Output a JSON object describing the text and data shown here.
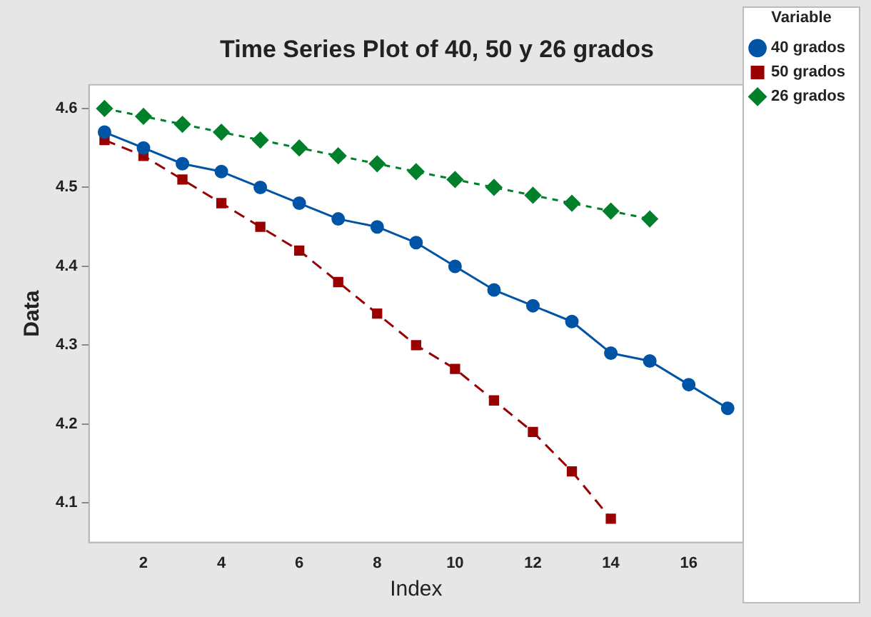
{
  "chart_data": {
    "type": "line",
    "title": "Time Series Plot of 40, 50 y 26 grados",
    "xlabel": "Index",
    "ylabel": "Data",
    "legend_title": "Variable",
    "legend": "right",
    "grid": false,
    "xlim": [
      0.6,
      17.4
    ],
    "xticks": [
      2,
      4,
      6,
      8,
      10,
      12,
      14,
      16
    ],
    "ylim": [
      4.05,
      4.63
    ],
    "yticks": [
      4.1,
      4.2,
      4.3,
      4.4,
      4.5,
      4.6
    ],
    "series": [
      {
        "name": "40 grados",
        "color": "#0054a6",
        "marker": "circle",
        "line_style": "solid",
        "x": [
          1,
          2,
          3,
          4,
          5,
          6,
          7,
          8,
          9,
          10,
          11,
          12,
          13,
          14,
          15,
          16,
          17
        ],
        "values": [
          4.57,
          4.55,
          4.53,
          4.52,
          4.5,
          4.48,
          4.46,
          4.45,
          4.43,
          4.4,
          4.37,
          4.35,
          4.33,
          4.29,
          4.28,
          4.25,
          4.22
        ]
      },
      {
        "name": "50 grados",
        "color": "#990000",
        "marker": "square",
        "line_style": "dashed",
        "x": [
          1,
          2,
          3,
          4,
          5,
          6,
          7,
          8,
          9,
          10,
          11,
          12,
          13,
          14
        ],
        "values": [
          4.56,
          4.54,
          4.51,
          4.48,
          4.45,
          4.42,
          4.38,
          4.34,
          4.3,
          4.27,
          4.23,
          4.19,
          4.14,
          4.08
        ]
      },
      {
        "name": "26 grados",
        "color": "#00802b",
        "marker": "diamond",
        "line_style": "dotted",
        "x": [
          1,
          2,
          3,
          4,
          5,
          6,
          7,
          8,
          9,
          10,
          11,
          12,
          13,
          14,
          15
        ],
        "values": [
          4.6,
          4.59,
          4.58,
          4.57,
          4.56,
          4.55,
          4.54,
          4.53,
          4.52,
          4.51,
          4.5,
          4.49,
          4.48,
          4.47,
          4.46
        ]
      }
    ]
  }
}
